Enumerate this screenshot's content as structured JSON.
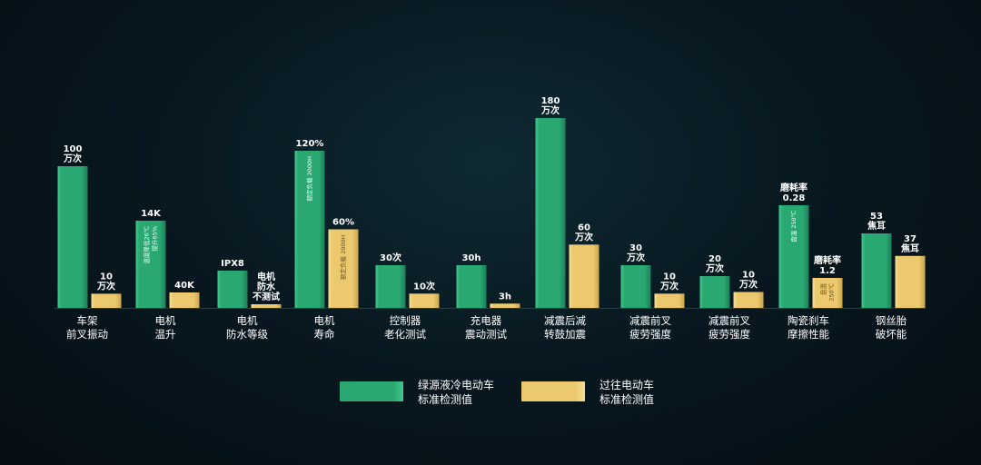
{
  "colors": {
    "ours": "#2aa872",
    "ours_light": "#41c98c",
    "ours_edge": "#1b7f58",
    "prev": "#ecc96e",
    "prev_light": "#f7df95",
    "prev_edge": "#c9a54f",
    "background": "#07141b"
  },
  "legend": {
    "ours_line1": "绿源液冷电动车",
    "ours_line2": "标准检测值",
    "prev_line1": "过往电动车",
    "prev_line2": "标准检测值"
  },
  "chart_data": {
    "type": "bar",
    "series": [
      {
        "key": "ours",
        "name": "绿源液冷电动车 标准检测值"
      },
      {
        "key": "prev",
        "name": "过往电动车 标准检测值"
      }
    ],
    "groups": [
      {
        "category": [
          "车架",
          "前叉振动"
        ],
        "bars": [
          {
            "value": 100,
            "label": [
              "100",
              "万次"
            ]
          },
          {
            "value": 10,
            "label": [
              "10",
              "万次"
            ]
          }
        ]
      },
      {
        "category": [
          "电机",
          "温升"
        ],
        "bars": [
          {
            "value": 56,
            "label": [
              "14K"
            ],
            "inner": [
              "温度降低26℃",
              "提升65%"
            ]
          },
          {
            "value": 10,
            "label": [
              "40K"
            ]
          }
        ]
      },
      {
        "category": [
          "电机",
          "防水等级"
        ],
        "bars": [
          {
            "value": 24,
            "label": [
              "IPX8"
            ]
          },
          {
            "value": 3,
            "label": [
              "电机",
              "防水",
              "不测试"
            ]
          }
        ]
      },
      {
        "category": [
          "电机",
          "寿命"
        ],
        "bars": [
          {
            "value": 120,
            "label": [
              "120%"
            ],
            "inner": [
              "额定负载 2000H"
            ]
          },
          {
            "value": 60,
            "label": [
              "60%"
            ],
            "inner": [
              "额定负载 2000H"
            ]
          }
        ]
      },
      {
        "category": [
          "控制器",
          "老化测试"
        ],
        "bars": [
          {
            "value": 30,
            "label": [
              "30次"
            ]
          },
          {
            "value": 10,
            "label": [
              "10次"
            ]
          }
        ]
      },
      {
        "category": [
          "充电器",
          "震动测试"
        ],
        "bars": [
          {
            "value": 30,
            "label": [
              "30h"
            ]
          },
          {
            "value": 3,
            "label": [
              "3h"
            ]
          }
        ]
      },
      {
        "category": [
          "减震后减",
          "转鼓加震"
        ],
        "bars": [
          {
            "value": 180,
            "label": [
              "180",
              "万次"
            ]
          },
          {
            "value": 60,
            "label": [
              "60",
              "万次"
            ]
          }
        ]
      },
      {
        "category": [
          "减震前叉",
          "疲劳强度"
        ],
        "bars": [
          {
            "value": 30,
            "label": [
              "30",
              "万次"
            ]
          },
          {
            "value": 10,
            "label": [
              "10",
              "万次"
            ]
          }
        ]
      },
      {
        "category": [
          "减震前叉",
          "疲劳强度"
        ],
        "bars": [
          {
            "value": 20,
            "label": [
              "20",
              "万次"
            ]
          },
          {
            "value": 10,
            "label": [
              "10",
              "万次"
            ]
          }
        ]
      },
      {
        "category": [
          "陶瓷刹车",
          "摩擦性能"
        ],
        "bars": [
          {
            "value": 0.28,
            "label": [
              "磨耗率",
              "0.28"
            ],
            "inner": [
              "盘温 250℃"
            ]
          },
          {
            "value": 1.2,
            "label": [
              "磨耗率",
              "1.2"
            ],
            "inner": [
              "盘温",
              "250℃"
            ]
          }
        ]
      },
      {
        "category": [
          "钢丝胎",
          "破坏能"
        ],
        "bars": [
          {
            "value": 53,
            "label": [
              "53",
              "焦耳"
            ]
          },
          {
            "value": 37,
            "label": [
              "37",
              "焦耳"
            ]
          }
        ]
      }
    ]
  }
}
